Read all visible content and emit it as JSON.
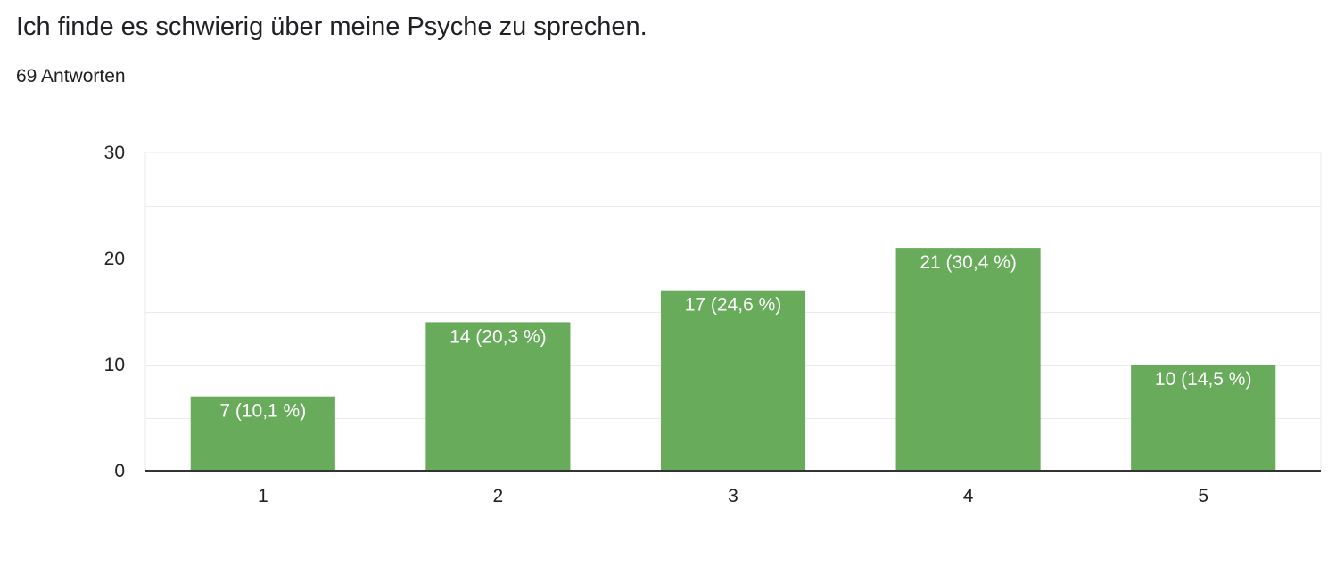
{
  "question": {
    "title": "Ich finde es schwierig über meine Psyche zu sprechen.",
    "responses": "69 Antworten"
  },
  "colors": {
    "bar": "#67ab5b",
    "grid": "#ebebeb",
    "axis": "#333333",
    "text": "#202124",
    "data_label": "#ffffff"
  },
  "chart_data": {
    "type": "bar",
    "title": "",
    "xlabel": "",
    "ylabel": "",
    "categories": [
      "1",
      "2",
      "3",
      "4",
      "5"
    ],
    "values": [
      7,
      14,
      17,
      21,
      10
    ],
    "labels": [
      "7 (10,1 %)",
      "14 (20,3 %)",
      "17 (24,6 %)",
      "21 (30,4 %)",
      "10 (14,5 %)"
    ],
    "ylim": [
      0,
      30
    ],
    "yticks": [
      0,
      10,
      20,
      30
    ],
    "grid": true,
    "legend": "none"
  }
}
